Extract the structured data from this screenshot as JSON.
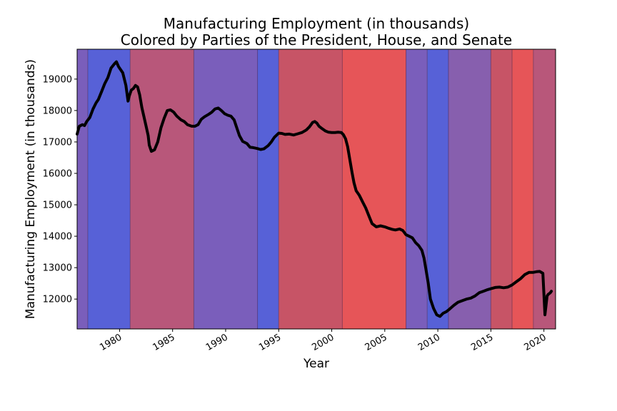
{
  "chart_data": {
    "type": "line",
    "title": "Manufacturing Employment (in thousands)",
    "subtitle": "Colored by Parties of the President, House, and Senate",
    "xlabel": "Year",
    "ylabel": "Manufacturing Employment (in thousands)",
    "xlim": [
      1976.0,
      2021.1
    ],
    "ylim": [
      11050,
      19950
    ],
    "x_ticks": [
      1980,
      1985,
      1990,
      1995,
      2000,
      2005,
      2010,
      2015,
      2020
    ],
    "y_ticks": [
      12000,
      13000,
      14000,
      15000,
      16000,
      17000,
      18000,
      19000
    ],
    "grid": false,
    "line_color": "#000000",
    "party_bands": [
      {
        "start": 1976.0,
        "end": 1977.0,
        "color": "#7a5ebb"
      },
      {
        "start": 1977.0,
        "end": 1981.0,
        "color": "#5761d7"
      },
      {
        "start": 1981.0,
        "end": 1987.0,
        "color": "#b8577a"
      },
      {
        "start": 1987.0,
        "end": 1993.0,
        "color": "#7a5ebb"
      },
      {
        "start": 1993.0,
        "end": 1995.0,
        "color": "#5761d7"
      },
      {
        "start": 1995.0,
        "end": 2001.0,
        "color": "#c75466"
      },
      {
        "start": 2001.0,
        "end": 2007.0,
        "color": "#e65558"
      },
      {
        "start": 2007.0,
        "end": 2009.0,
        "color": "#7a5ebb"
      },
      {
        "start": 2009.0,
        "end": 2011.0,
        "color": "#5761d7"
      },
      {
        "start": 2011.0,
        "end": 2015.0,
        "color": "#875fae"
      },
      {
        "start": 2015.0,
        "end": 2017.0,
        "color": "#c75466"
      },
      {
        "start": 2017.0,
        "end": 2019.0,
        "color": "#e65558"
      },
      {
        "start": 2019.0,
        "end": 2021.1,
        "color": "#b8577a"
      }
    ],
    "series": [
      {
        "x": [
          1976.0,
          1976.2,
          1976.5,
          1976.7,
          1976.9,
          1977.2,
          1977.5,
          1977.8,
          1978.0,
          1978.3,
          1978.6,
          1978.9,
          1979.2,
          1979.5,
          1979.7,
          1979.9,
          1980.1,
          1980.3,
          1980.6,
          1980.8,
          1980.9,
          1981.1,
          1981.3,
          1981.5,
          1981.7,
          1981.9,
          1982.1,
          1982.3,
          1982.5,
          1982.7,
          1982.8,
          1983.0,
          1983.3,
          1983.6,
          1983.9,
          1984.2,
          1984.5,
          1984.8,
          1985.1,
          1985.4,
          1985.8,
          1986.1,
          1986.4,
          1986.8,
          1987.1,
          1987.4,
          1987.7,
          1988.0,
          1988.4,
          1988.7,
          1989.0,
          1989.3,
          1989.6,
          1989.9,
          1990.2,
          1990.5,
          1990.8,
          1991.0,
          1991.3,
          1991.6,
          1992.0,
          1992.3,
          1992.6,
          1993.0,
          1993.3,
          1993.6,
          1994.0,
          1994.3,
          1994.6,
          1995.0,
          1995.3,
          1995.6,
          1996.0,
          1996.4,
          1996.8,
          1997.2,
          1997.6,
          1997.9,
          1998.2,
          1998.4,
          1998.6,
          1998.8,
          1999.1,
          1999.4,
          1999.7,
          2000.0,
          2000.3,
          2000.6,
          2000.9,
          2001.1,
          2001.3,
          2001.5,
          2001.7,
          2001.9,
          2002.1,
          2002.3,
          2002.6,
          2002.9,
          2003.2,
          2003.5,
          2003.8,
          2004.2,
          2004.6,
          2005.0,
          2005.4,
          2005.7,
          2006.0,
          2006.4,
          2006.7,
          2007.0,
          2007.3,
          2007.6,
          2007.9,
          2008.2,
          2008.5,
          2008.7,
          2008.9,
          2009.1,
          2009.3,
          2009.6,
          2009.9,
          2010.2,
          2010.5,
          2010.8,
          2011.1,
          2011.5,
          2011.9,
          2012.3,
          2012.7,
          2013.1,
          2013.5,
          2013.9,
          2014.3,
          2014.7,
          2015.0,
          2015.4,
          2015.8,
          2016.2,
          2016.6,
          2017.0,
          2017.4,
          2017.8,
          2018.2,
          2018.6,
          2019.0,
          2019.3,
          2019.6,
          2019.9,
          2020.1,
          2020.2,
          2020.3,
          2020.4,
          2020.6,
          2020.7
        ],
        "y": [
          17250,
          17500,
          17550,
          17520,
          17650,
          17780,
          18050,
          18250,
          18350,
          18600,
          18850,
          19050,
          19350,
          19480,
          19550,
          19400,
          19300,
          19200,
          18800,
          18300,
          18450,
          18650,
          18700,
          18800,
          18750,
          18500,
          18100,
          17800,
          17500,
          17200,
          16900,
          16700,
          16750,
          17000,
          17450,
          17750,
          18000,
          18020,
          17950,
          17820,
          17700,
          17650,
          17550,
          17500,
          17500,
          17550,
          17720,
          17800,
          17880,
          17950,
          18050,
          18080,
          18000,
          17900,
          17850,
          17820,
          17700,
          17500,
          17200,
          17020,
          16950,
          16830,
          16820,
          16790,
          16760,
          16780,
          16880,
          17000,
          17150,
          17280,
          17270,
          17240,
          17250,
          17220,
          17260,
          17300,
          17380,
          17480,
          17620,
          17650,
          17600,
          17500,
          17420,
          17350,
          17310,
          17300,
          17300,
          17310,
          17300,
          17230,
          17100,
          16850,
          16450,
          16050,
          15700,
          15450,
          15300,
          15100,
          14900,
          14650,
          14400,
          14300,
          14330,
          14300,
          14250,
          14220,
          14200,
          14230,
          14180,
          14050,
          14000,
          13950,
          13800,
          13700,
          13550,
          13300,
          12900,
          12500,
          12000,
          11700,
          11500,
          11450,
          11550,
          11600,
          11680,
          11800,
          11900,
          11950,
          12000,
          12030,
          12100,
          12200,
          12250,
          12300,
          12330,
          12370,
          12380,
          12360,
          12380,
          12450,
          12550,
          12650,
          12780,
          12850,
          12850,
          12870,
          12880,
          12820,
          11500,
          11800,
          12100,
          12150,
          12200,
          12250
        ]
      }
    ]
  }
}
